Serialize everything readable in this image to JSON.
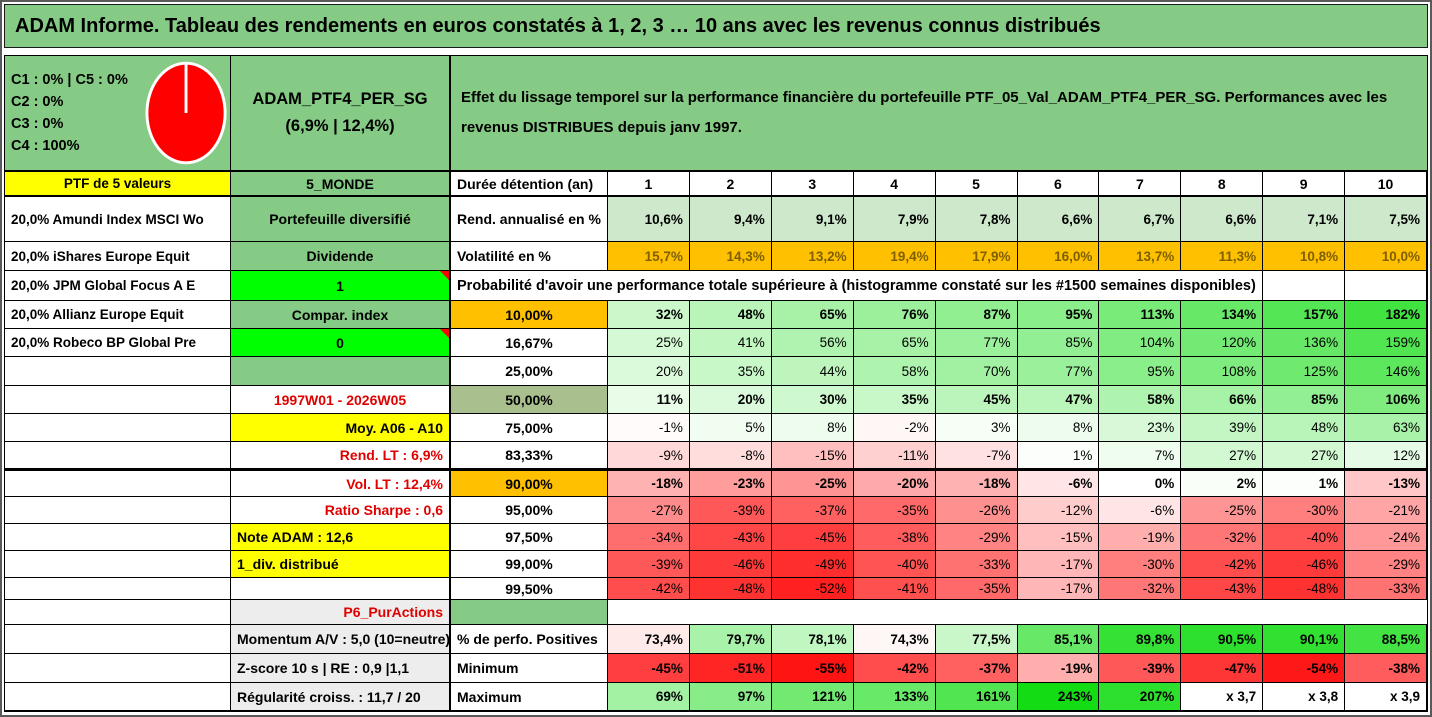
{
  "title": "ADAM Informe. Tableau des rendements en euros constatés à 1, 2, 3 … 10 ans avec les revenus connus distribués",
  "colors": {
    "header_green": "#85CB85",
    "pale_green": "#CDE8CB",
    "orange": "#FFC000",
    "yellow": "#FFFF00",
    "bright_green": "#00FF00",
    "sage_green": "#A9C08E",
    "gray": "#EDEDED",
    "red_text": "#E00000",
    "volatility_text": "#7F6000",
    "pie_red": "#FF0000"
  },
  "top_left": {
    "lines": [
      "C1 : 0% | C5 : 0%",
      "C2 : 0%",
      "C3 : 0%",
      "C4 : 100%"
    ],
    "pie": {
      "filled_share": "100%",
      "color": "#FF0000"
    }
  },
  "portfolio": {
    "name": "ADAM_PTF4_PER_SG",
    "stats": "(6,9% | 12,4%)"
  },
  "description": "Effet du lissage temporel sur la performance financière du portefeuille PTF_05_Val_ADAM_PTF4_PER_SG. Performances avec les revenus DISTRIBUES depuis janv 1997.",
  "grid": {
    "rows": [
      {
        "a": {
          "t": "PTF de 5 valeurs",
          "bg": "#FFFF00",
          "al": "center"
        },
        "b": {
          "t": "5_MONDE",
          "bg": "#85CB85"
        },
        "c": {
          "t": "Durée détention (an)",
          "al": "left"
        },
        "type": "colheader",
        "values": [
          "1",
          "2",
          "3",
          "4",
          "5",
          "6",
          "7",
          "8",
          "9",
          "10"
        ]
      },
      {
        "a": {
          "t": "20,0% Amundi Index MSCI Wo",
          "al": "left"
        },
        "b": {
          "t": "Portefeuille diversifié",
          "bg": "#85CB85"
        },
        "c": {
          "t": "Rend. annualisé en %",
          "al": "left"
        },
        "type": "values",
        "scale": "fixed",
        "cellBg": "#CDE8CB",
        "bold": true,
        "values": [
          "10,6%",
          "9,4%",
          "9,1%",
          "7,9%",
          "7,8%",
          "6,6%",
          "6,7%",
          "6,6%",
          "7,1%",
          "7,5%"
        ]
      },
      {
        "a": {
          "t": "20,0% iShares Europe Equit",
          "al": "left"
        },
        "b": {
          "t": "Dividende",
          "bg": "#85CB85"
        },
        "c": {
          "t": "Volatilité en %",
          "al": "left"
        },
        "type": "values",
        "scale": "fixed",
        "cellBg": "#FFC000",
        "cellFg": "#7F6000",
        "bold": true,
        "values": [
          "15,7%",
          "14,3%",
          "13,2%",
          "19,4%",
          "17,9%",
          "16,0%",
          "13,7%",
          "11,3%",
          "10,8%",
          "10,0%"
        ]
      },
      {
        "a": {
          "t": "20,0% JPM Global Focus A E",
          "al": "left"
        },
        "b": {
          "t": "1",
          "bg": "#00FF00",
          "tri": true
        },
        "type": "prob",
        "prob": "Probabilité d'avoir une performance totale supérieure à (histogramme constaté sur les #1500 semaines disponibles)"
      },
      {
        "a": {
          "t": "20,0% Allianz Europe Equit",
          "al": "left"
        },
        "b": {
          "t": "Compar. index",
          "bg": "#85CB85"
        },
        "c": {
          "t": "10,00%",
          "bg": "#FFC000"
        },
        "type": "values",
        "scale": "heat",
        "bold": true,
        "values": [
          "32%",
          "48%",
          "65%",
          "76%",
          "87%",
          "95%",
          "113%",
          "134%",
          "157%",
          "182%"
        ]
      },
      {
        "a": {
          "t": "20,0% Robeco BP Global Pre",
          "al": "left"
        },
        "b": {
          "t": "0",
          "bg": "#00FF00",
          "tri": true
        },
        "c": {
          "t": "16,67%"
        },
        "type": "values",
        "scale": "heat",
        "values": [
          "25%",
          "41%",
          "56%",
          "65%",
          "77%",
          "85%",
          "104%",
          "120%",
          "136%",
          "159%"
        ]
      },
      {
        "a": {
          "t": ""
        },
        "b": {
          "t": "",
          "bg": "#85CB85"
        },
        "c": {
          "t": "25,00%"
        },
        "type": "values",
        "scale": "heat",
        "values": [
          "20%",
          "35%",
          "44%",
          "58%",
          "70%",
          "77%",
          "95%",
          "108%",
          "125%",
          "146%"
        ]
      },
      {
        "a": {
          "t": ""
        },
        "b": {
          "t": "1997W01 - 2026W05",
          "fg": "#E00000"
        },
        "c": {
          "t": "50,00%",
          "bg": "#A9C08E"
        },
        "type": "values",
        "scale": "heat",
        "bold": true,
        "values": [
          "11%",
          "20%",
          "30%",
          "35%",
          "45%",
          "47%",
          "58%",
          "66%",
          "85%",
          "106%"
        ]
      },
      {
        "a": {
          "t": ""
        },
        "b": {
          "t": "Moy. A06 - A10",
          "bg": "#FFFF00",
          "al": "right"
        },
        "c": {
          "t": "75,00%"
        },
        "type": "values",
        "scale": "heat",
        "values": [
          "-1%",
          "5%",
          "8%",
          "-2%",
          "3%",
          "8%",
          "23%",
          "39%",
          "48%",
          "63%"
        ]
      },
      {
        "a": {
          "t": ""
        },
        "b": {
          "t": "Rend. LT : 6,9%",
          "fg": "#E00000",
          "al": "right"
        },
        "c": {
          "t": "83,33%"
        },
        "type": "values",
        "scale": "heat",
        "values": [
          "-9%",
          "-8%",
          "-15%",
          "-11%",
          "-7%",
          "1%",
          "7%",
          "27%",
          "27%",
          "12%"
        ]
      },
      {
        "a": {
          "t": ""
        },
        "b": {
          "t": "Vol. LT : 12,4%",
          "fg": "#E00000",
          "al": "right"
        },
        "c": {
          "t": "90,00%",
          "bg": "#FFC000"
        },
        "type": "values",
        "scale": "heat",
        "bold": true,
        "thickTop": true,
        "values": [
          "-18%",
          "-23%",
          "-25%",
          "-20%",
          "-18%",
          "-6%",
          "0%",
          "2%",
          "1%",
          "-13%"
        ]
      },
      {
        "a": {
          "t": ""
        },
        "b": {
          "t": "Ratio Sharpe : 0,6",
          "fg": "#E00000",
          "al": "right"
        },
        "c": {
          "t": "95,00%"
        },
        "type": "values",
        "scale": "heat",
        "values": [
          "-27%",
          "-39%",
          "-37%",
          "-35%",
          "-26%",
          "-12%",
          "-6%",
          "-25%",
          "-30%",
          "-21%"
        ]
      },
      {
        "a": {
          "t": ""
        },
        "b": {
          "t": "Note ADAM : 12,6",
          "bg": "#FFFF00",
          "al": "left"
        },
        "c": {
          "t": "97,50%"
        },
        "type": "values",
        "scale": "heat",
        "values": [
          "-34%",
          "-43%",
          "-45%",
          "-38%",
          "-29%",
          "-15%",
          "-19%",
          "-32%",
          "-40%",
          "-24%"
        ]
      },
      {
        "a": {
          "t": ""
        },
        "b": {
          "t": "1_div. distribué",
          "bg": "#FFFF00",
          "al": "left"
        },
        "c": {
          "t": "99,00%"
        },
        "type": "values",
        "scale": "heat",
        "values": [
          "-39%",
          "-46%",
          "-49%",
          "-40%",
          "-33%",
          "-17%",
          "-30%",
          "-42%",
          "-46%",
          "-29%"
        ]
      },
      {
        "a": {
          "t": ""
        },
        "b": {
          "t": ""
        },
        "c": {
          "t": "99,50%"
        },
        "type": "values",
        "scale": "heat",
        "values": [
          "-42%",
          "-48%",
          "-52%",
          "-41%",
          "-35%",
          "-17%",
          "-32%",
          "-43%",
          "-48%",
          "-33%"
        ]
      },
      {
        "a": {
          "t": ""
        },
        "b": {
          "t": "P6_PurActions",
          "bg": "#EDEDED",
          "fg": "#E00000",
          "al": "right"
        },
        "c": {
          "t": "",
          "bg": "#85CB85"
        },
        "type": "blank"
      },
      {
        "a": {
          "t": ""
        },
        "b": {
          "t": "Momentum A/V : 5,0 (10=neutre)",
          "bg": "#EDEDED",
          "al": "left"
        },
        "c": {
          "t": "% de perfo. Positives",
          "al": "left"
        },
        "type": "values",
        "scale": "perfo",
        "bold": true,
        "values": [
          "73,4%",
          "79,7%",
          "78,1%",
          "74,3%",
          "77,5%",
          "85,1%",
          "89,8%",
          "90,5%",
          "90,1%",
          "88,5%"
        ]
      },
      {
        "a": {
          "t": ""
        },
        "b": {
          "t": "Z-score 10 s | RE : 0,9 |1,1",
          "bg": "#EDEDED",
          "al": "left"
        },
        "c": {
          "t": "Minimum",
          "al": "left"
        },
        "type": "values",
        "scale": "heat",
        "bold": true,
        "values": [
          "-45%",
          "-51%",
          "-55%",
          "-42%",
          "-37%",
          "-19%",
          "-39%",
          "-47%",
          "-54%",
          "-38%"
        ]
      },
      {
        "a": {
          "t": ""
        },
        "b": {
          "t": "Régularité croiss. : 11,7 / 20",
          "bg": "#EDEDED",
          "al": "left"
        },
        "c": {
          "t": "Maximum",
          "al": "left"
        },
        "type": "values",
        "scale": "heat",
        "bold": true,
        "values": [
          "69%",
          "97%",
          "121%",
          "133%",
          "161%",
          "243%",
          "207%",
          "x 3,7",
          "x 3,8",
          "x 3,9"
        ]
      }
    ]
  }
}
